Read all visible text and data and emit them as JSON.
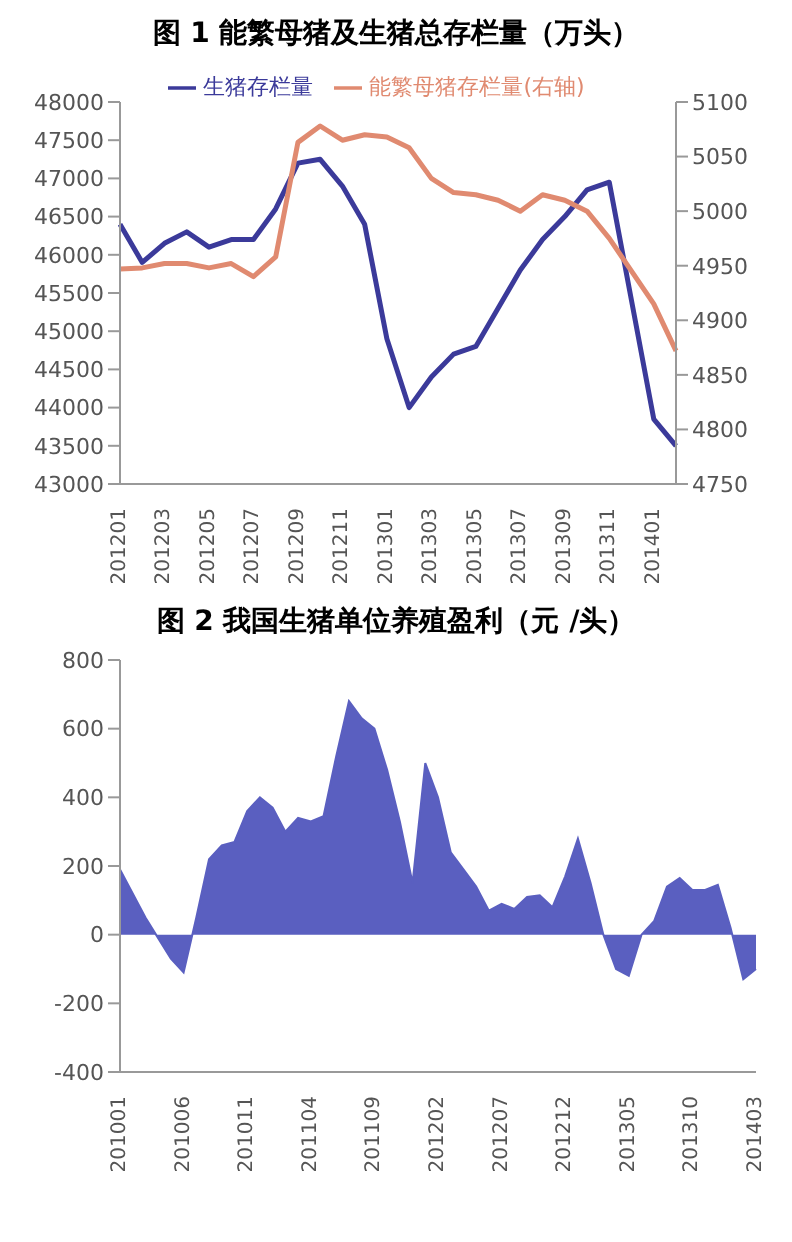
{
  "chart_data": [
    {
      "type": "line",
      "title": "图 1  能繁母猪及生猪总存栏量（万头）",
      "categories": [
        "201201",
        null,
        "201203",
        null,
        "201205",
        null,
        "201207",
        null,
        "201209",
        null,
        "201211",
        null,
        "201301",
        null,
        "201303",
        null,
        "201305",
        null,
        "201307",
        null,
        "201309",
        null,
        "201311",
        null,
        "201401",
        null
      ],
      "series": [
        {
          "name": "生猪存栏量",
          "color": "#3b3a9a",
          "values": [
            46400,
            45900,
            46150,
            46300,
            46100,
            46200,
            46200,
            46600,
            47200,
            47250,
            46900,
            46400,
            44900,
            44000,
            44400,
            44700,
            44800,
            45300,
            45800,
            46200,
            46500,
            46850,
            46950,
            45400,
            43850,
            43500
          ]
        },
        {
          "name": "能繁母猪存栏量(右轴)",
          "color": "#e08a70",
          "axis": "y2",
          "values": [
            4947,
            4948,
            4952,
            4952,
            4948,
            4952,
            4940,
            4958,
            5063,
            5078,
            5065,
            5070,
            5068,
            5058,
            5030,
            5017,
            5015,
            5010,
            5000,
            5015,
            5010,
            5000,
            4975,
            4945,
            4915,
            4872
          ]
        }
      ],
      "ylim": [
        43000,
        48000
      ],
      "yticks": [
        43000,
        43500,
        44000,
        44500,
        45000,
        45500,
        46000,
        46500,
        47000,
        47500,
        48000
      ],
      "y2lim": [
        4750,
        5100
      ],
      "y2ticks": [
        4750,
        4800,
        4850,
        4900,
        4950,
        5000,
        5050,
        5100
      ],
      "legend": "top",
      "grid": false
    },
    {
      "type": "area",
      "title": "图 2  我国生猪单位养殖盈利（元 /头）",
      "categories": [
        "201001",
        null,
        null,
        null,
        null,
        "201006",
        null,
        null,
        null,
        null,
        "201011",
        null,
        null,
        null,
        null,
        "201104",
        null,
        null,
        null,
        null,
        "201109",
        null,
        null,
        null,
        null,
        "201202",
        null,
        null,
        null,
        null,
        "201207",
        null,
        null,
        null,
        null,
        "201212",
        null,
        null,
        null,
        null,
        "201305",
        null,
        null,
        null,
        null,
        "201310",
        null,
        null,
        null,
        null,
        "201403"
      ],
      "series": [
        {
          "color": "#5a5fc0",
          "values": [
            190,
            120,
            50,
            -10,
            -70,
            -110,
            50,
            220,
            260,
            270,
            360,
            400,
            370,
            300,
            340,
            330,
            345,
            520,
            680,
            630,
            600,
            480,
            330,
            150,
            500,
            400,
            240,
            190,
            140,
            70,
            90,
            75,
            110,
            115,
            80,
            170,
            280,
            150,
            0,
            -100,
            -120,
            0,
            40,
            140,
            165,
            130,
            130,
            145,
            20,
            -130,
            -100
          ]
        }
      ],
      "ylim": [
        -400,
        800
      ],
      "yticks": [
        -400,
        -200,
        0,
        200,
        400,
        600,
        800
      ],
      "grid": false
    }
  ]
}
